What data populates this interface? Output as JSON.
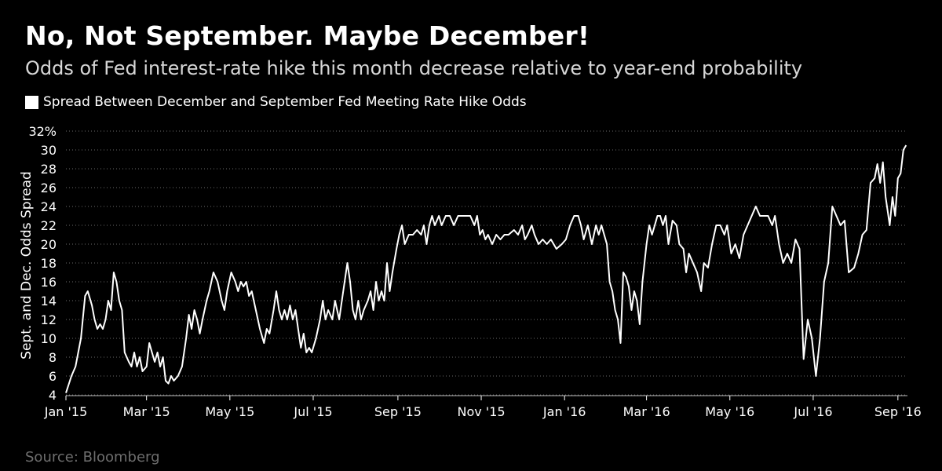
{
  "header": {
    "title": "No, Not September. Maybe December!",
    "subtitle": "Odds of Fed interest-rate hike this month decrease relative to year-end probability"
  },
  "footer": {
    "source": "Source: Bloomberg"
  },
  "colors": {
    "background": "#000000",
    "line": "#ffffff",
    "grid": "#6a6a6a",
    "source_text": "#6e6e6e"
  },
  "chart_data": {
    "type": "line",
    "title": "No, Not September. Maybe December!",
    "subtitle": "Odds of Fed interest-rate hike this month decrease relative to year-end probability",
    "xlabel": "",
    "ylabel": "Sept. and Dec. Odds Spread",
    "ylim": [
      4,
      32
    ],
    "y_ticks": [
      4,
      6,
      8,
      10,
      12,
      14,
      16,
      18,
      20,
      22,
      24,
      26,
      28,
      30,
      32
    ],
    "y_tick_labels": [
      "4",
      "6",
      "8",
      "10",
      "12",
      "14",
      "16",
      "18",
      "20",
      "22",
      "24",
      "26",
      "28",
      "30",
      "32%"
    ],
    "x_range": [
      "2015-01-01",
      "2016-09-08"
    ],
    "x_ticks": [
      {
        "date": "2015-01-01",
        "label": "Jan '15"
      },
      {
        "date": "2015-03-01",
        "label": "Mar '15"
      },
      {
        "date": "2015-05-01",
        "label": "May '15"
      },
      {
        "date": "2015-07-01",
        "label": "Jul '15"
      },
      {
        "date": "2015-09-01",
        "label": "Sep '15"
      },
      {
        "date": "2015-11-01",
        "label": "Nov '15"
      },
      {
        "date": "2016-01-01",
        "label": "Jan '16"
      },
      {
        "date": "2016-03-01",
        "label": "Mar '16"
      },
      {
        "date": "2016-05-01",
        "label": "May '16"
      },
      {
        "date": "2016-07-01",
        "label": "Jul '16"
      },
      {
        "date": "2016-09-01",
        "label": "Sep '16"
      }
    ],
    "grid": "horizontal dotted",
    "legend_position": "top-left",
    "series": [
      {
        "name": "Spread Between December and September Fed Meeting Rate Hike Odds",
        "points": [
          [
            "2015-01-01",
            4.2
          ],
          [
            "2015-01-05",
            6.0
          ],
          [
            "2015-01-08",
            7.0
          ],
          [
            "2015-01-12",
            10.0
          ],
          [
            "2015-01-15",
            14.5
          ],
          [
            "2015-01-17",
            15.0
          ],
          [
            "2015-01-20",
            13.5
          ],
          [
            "2015-01-22",
            12.0
          ],
          [
            "2015-01-24",
            11.0
          ],
          [
            "2015-01-26",
            11.5
          ],
          [
            "2015-01-28",
            11.0
          ],
          [
            "2015-01-30",
            12.0
          ],
          [
            "2015-02-01",
            14.0
          ],
          [
            "2015-02-03",
            13.0
          ],
          [
            "2015-02-05",
            17.0
          ],
          [
            "2015-02-07",
            16.0
          ],
          [
            "2015-02-09",
            14.0
          ],
          [
            "2015-02-11",
            13.0
          ],
          [
            "2015-02-13",
            8.5
          ],
          [
            "2015-02-16",
            7.5
          ],
          [
            "2015-02-18",
            7.0
          ],
          [
            "2015-02-20",
            8.5
          ],
          [
            "2015-02-22",
            7.0
          ],
          [
            "2015-02-24",
            8.0
          ],
          [
            "2015-02-26",
            6.5
          ],
          [
            "2015-03-01",
            7.0
          ],
          [
            "2015-03-03",
            9.5
          ],
          [
            "2015-03-05",
            8.5
          ],
          [
            "2015-03-07",
            7.5
          ],
          [
            "2015-03-09",
            8.5
          ],
          [
            "2015-03-11",
            7.0
          ],
          [
            "2015-03-13",
            8.0
          ],
          [
            "2015-03-15",
            5.5
          ],
          [
            "2015-03-17",
            5.2
          ],
          [
            "2015-03-19",
            6.0
          ],
          [
            "2015-03-21",
            5.5
          ],
          [
            "2015-03-24",
            6.0
          ],
          [
            "2015-03-27",
            7.0
          ],
          [
            "2015-03-30",
            10.0
          ],
          [
            "2015-04-01",
            12.5
          ],
          [
            "2015-04-03",
            11.0
          ],
          [
            "2015-04-05",
            13.0
          ],
          [
            "2015-04-07",
            12.0
          ],
          [
            "2015-04-09",
            10.5
          ],
          [
            "2015-04-11",
            12.0
          ],
          [
            "2015-04-14",
            14.0
          ],
          [
            "2015-04-16",
            15.0
          ],
          [
            "2015-04-19",
            17.0
          ],
          [
            "2015-04-22",
            16.0
          ],
          [
            "2015-04-25",
            14.0
          ],
          [
            "2015-04-27",
            13.0
          ],
          [
            "2015-04-29",
            15.0
          ],
          [
            "2015-05-02",
            17.0
          ],
          [
            "2015-05-05",
            16.0
          ],
          [
            "2015-05-07",
            15.0
          ],
          [
            "2015-05-09",
            16.0
          ],
          [
            "2015-05-11",
            15.5
          ],
          [
            "2015-05-13",
            16.0
          ],
          [
            "2015-05-15",
            14.5
          ],
          [
            "2015-05-17",
            15.0
          ],
          [
            "2015-05-20",
            13.0
          ],
          [
            "2015-05-23",
            11.0
          ],
          [
            "2015-05-26",
            9.5
          ],
          [
            "2015-05-28",
            11.0
          ],
          [
            "2015-05-30",
            10.5
          ],
          [
            "2015-06-02",
            13.0
          ],
          [
            "2015-06-04",
            15.0
          ],
          [
            "2015-06-06",
            13.0
          ],
          [
            "2015-06-08",
            12.0
          ],
          [
            "2015-06-10",
            13.0
          ],
          [
            "2015-06-12",
            12.0
          ],
          [
            "2015-06-14",
            13.5
          ],
          [
            "2015-06-16",
            12.0
          ],
          [
            "2015-06-18",
            13.0
          ],
          [
            "2015-06-20",
            11.0
          ],
          [
            "2015-06-22",
            9.0
          ],
          [
            "2015-06-24",
            10.5
          ],
          [
            "2015-06-26",
            8.5
          ],
          [
            "2015-06-28",
            9.0
          ],
          [
            "2015-06-30",
            8.5
          ],
          [
            "2015-07-03",
            10.0
          ],
          [
            "2015-07-06",
            12.0
          ],
          [
            "2015-07-08",
            14.0
          ],
          [
            "2015-07-10",
            12.0
          ],
          [
            "2015-07-12",
            13.0
          ],
          [
            "2015-07-15",
            12.0
          ],
          [
            "2015-07-17",
            14.0
          ],
          [
            "2015-07-20",
            12.0
          ],
          [
            "2015-07-22",
            14.0
          ],
          [
            "2015-07-24",
            16.0
          ],
          [
            "2015-07-26",
            18.0
          ],
          [
            "2015-07-28",
            16.0
          ],
          [
            "2015-07-30",
            13.0
          ],
          [
            "2015-08-01",
            12.0
          ],
          [
            "2015-08-03",
            14.0
          ],
          [
            "2015-08-05",
            12.0
          ],
          [
            "2015-08-07",
            13.0
          ],
          [
            "2015-08-10",
            14.0
          ],
          [
            "2015-08-12",
            15.0
          ],
          [
            "2015-08-14",
            13.0
          ],
          [
            "2015-08-16",
            16.0
          ],
          [
            "2015-08-18",
            14.0
          ],
          [
            "2015-08-20",
            15.0
          ],
          [
            "2015-08-22",
            14.0
          ],
          [
            "2015-08-24",
            18.0
          ],
          [
            "2015-08-26",
            15.0
          ],
          [
            "2015-08-28",
            17.0
          ],
          [
            "2015-08-31",
            19.5
          ],
          [
            "2015-09-02",
            21.0
          ],
          [
            "2015-09-04",
            22.0
          ],
          [
            "2015-09-06",
            20.0
          ],
          [
            "2015-09-09",
            21.0
          ],
          [
            "2015-09-12",
            21.0
          ],
          [
            "2015-09-15",
            21.5
          ],
          [
            "2015-09-18",
            21.0
          ],
          [
            "2015-09-20",
            22.0
          ],
          [
            "2015-09-22",
            20.0
          ],
          [
            "2015-09-24",
            22.0
          ],
          [
            "2015-09-26",
            23.0
          ],
          [
            "2015-09-28",
            22.0
          ],
          [
            "2015-10-01",
            23.0
          ],
          [
            "2015-10-03",
            22.0
          ],
          [
            "2015-10-06",
            23.0
          ],
          [
            "2015-10-09",
            23.0
          ],
          [
            "2015-10-12",
            22.0
          ],
          [
            "2015-10-15",
            23.0
          ],
          [
            "2015-10-18",
            23.0
          ],
          [
            "2015-10-21",
            23.0
          ],
          [
            "2015-10-24",
            23.0
          ],
          [
            "2015-10-27",
            22.0
          ],
          [
            "2015-10-29",
            23.0
          ],
          [
            "2015-10-31",
            21.0
          ],
          [
            "2015-11-02",
            21.5
          ],
          [
            "2015-11-04",
            20.5
          ],
          [
            "2015-11-06",
            21.0
          ],
          [
            "2015-11-09",
            20.0
          ],
          [
            "2015-11-12",
            21.0
          ],
          [
            "2015-11-15",
            20.5
          ],
          [
            "2015-11-18",
            21.0
          ],
          [
            "2015-11-21",
            21.0
          ],
          [
            "2015-11-25",
            21.5
          ],
          [
            "2015-11-28",
            21.0
          ],
          [
            "2015-12-01",
            22.0
          ],
          [
            "2015-12-03",
            20.5
          ],
          [
            "2015-12-05",
            21.0
          ],
          [
            "2015-12-08",
            22.0
          ],
          [
            "2015-12-10",
            21.0
          ],
          [
            "2015-12-13",
            20.0
          ],
          [
            "2015-12-16",
            20.5
          ],
          [
            "2015-12-19",
            20.0
          ],
          [
            "2015-12-22",
            20.5
          ],
          [
            "2015-12-26",
            19.5
          ],
          [
            "2015-12-30",
            20.0
          ],
          [
            "2016-01-02",
            20.5
          ],
          [
            "2016-01-05",
            22.0
          ],
          [
            "2016-01-08",
            23.0
          ],
          [
            "2016-01-11",
            23.0
          ],
          [
            "2016-01-13",
            22.0
          ],
          [
            "2016-01-15",
            20.5
          ],
          [
            "2016-01-18",
            22.0
          ],
          [
            "2016-01-21",
            20.0
          ],
          [
            "2016-01-24",
            22.0
          ],
          [
            "2016-01-26",
            21.0
          ],
          [
            "2016-01-28",
            22.0
          ],
          [
            "2016-02-01",
            20.0
          ],
          [
            "2016-02-03",
            16.0
          ],
          [
            "2016-02-05",
            15.0
          ],
          [
            "2016-02-07",
            13.0
          ],
          [
            "2016-02-09",
            12.0
          ],
          [
            "2016-02-11",
            9.5
          ],
          [
            "2016-02-13",
            17.0
          ],
          [
            "2016-02-15",
            16.5
          ],
          [
            "2016-02-17",
            15.5
          ],
          [
            "2016-02-19",
            13.0
          ],
          [
            "2016-02-21",
            15.0
          ],
          [
            "2016-02-23",
            14.0
          ],
          [
            "2016-02-25",
            11.5
          ],
          [
            "2016-02-27",
            16.0
          ],
          [
            "2016-03-01",
            20.0
          ],
          [
            "2016-03-03",
            22.0
          ],
          [
            "2016-03-05",
            21.0
          ],
          [
            "2016-03-07",
            22.0
          ],
          [
            "2016-03-09",
            23.0
          ],
          [
            "2016-03-11",
            23.0
          ],
          [
            "2016-03-13",
            22.0
          ],
          [
            "2016-03-15",
            23.0
          ],
          [
            "2016-03-17",
            20.0
          ],
          [
            "2016-03-20",
            22.5
          ],
          [
            "2016-03-23",
            22.0
          ],
          [
            "2016-03-25",
            20.0
          ],
          [
            "2016-03-28",
            19.5
          ],
          [
            "2016-03-30",
            17.0
          ],
          [
            "2016-04-01",
            19.0
          ],
          [
            "2016-04-04",
            18.0
          ],
          [
            "2016-04-07",
            17.0
          ],
          [
            "2016-04-10",
            15.0
          ],
          [
            "2016-04-12",
            18.0
          ],
          [
            "2016-04-15",
            17.5
          ],
          [
            "2016-04-18",
            20.0
          ],
          [
            "2016-04-21",
            22.0
          ],
          [
            "2016-04-24",
            22.0
          ],
          [
            "2016-04-27",
            21.0
          ],
          [
            "2016-04-29",
            22.0
          ],
          [
            "2016-05-02",
            19.0
          ],
          [
            "2016-05-05",
            20.0
          ],
          [
            "2016-05-08",
            18.5
          ],
          [
            "2016-05-11",
            21.0
          ],
          [
            "2016-05-14",
            22.0
          ],
          [
            "2016-05-17",
            23.0
          ],
          [
            "2016-05-20",
            24.0
          ],
          [
            "2016-05-23",
            23.0
          ],
          [
            "2016-05-26",
            23.0
          ],
          [
            "2016-05-29",
            23.0
          ],
          [
            "2016-06-01",
            22.0
          ],
          [
            "2016-06-03",
            23.0
          ],
          [
            "2016-06-06",
            20.0
          ],
          [
            "2016-06-09",
            18.0
          ],
          [
            "2016-06-12",
            19.0
          ],
          [
            "2016-06-15",
            18.0
          ],
          [
            "2016-06-18",
            20.5
          ],
          [
            "2016-06-21",
            19.5
          ],
          [
            "2016-06-24",
            7.8
          ],
          [
            "2016-06-27",
            12.0
          ],
          [
            "2016-06-30",
            10.0
          ],
          [
            "2016-07-03",
            6.0
          ],
          [
            "2016-07-06",
            10.0
          ],
          [
            "2016-07-09",
            16.0
          ],
          [
            "2016-07-12",
            18.0
          ],
          [
            "2016-07-15",
            24.0
          ],
          [
            "2016-07-18",
            23.0
          ],
          [
            "2016-07-21",
            22.0
          ],
          [
            "2016-07-24",
            22.5
          ],
          [
            "2016-07-27",
            17.0
          ],
          [
            "2016-07-31",
            17.5
          ],
          [
            "2016-08-03",
            19.0
          ],
          [
            "2016-08-06",
            21.0
          ],
          [
            "2016-08-09",
            21.5
          ],
          [
            "2016-08-12",
            26.5
          ],
          [
            "2016-08-15",
            27.0
          ],
          [
            "2016-08-17",
            28.5
          ],
          [
            "2016-08-19",
            26.5
          ],
          [
            "2016-08-21",
            28.7
          ],
          [
            "2016-08-23",
            25.0
          ],
          [
            "2016-08-26",
            22.0
          ],
          [
            "2016-08-28",
            25.0
          ],
          [
            "2016-08-30",
            23.0
          ],
          [
            "2016-09-01",
            27.0
          ],
          [
            "2016-09-03",
            27.5
          ],
          [
            "2016-09-05",
            30.0
          ],
          [
            "2016-09-07",
            30.5
          ]
        ]
      }
    ]
  }
}
